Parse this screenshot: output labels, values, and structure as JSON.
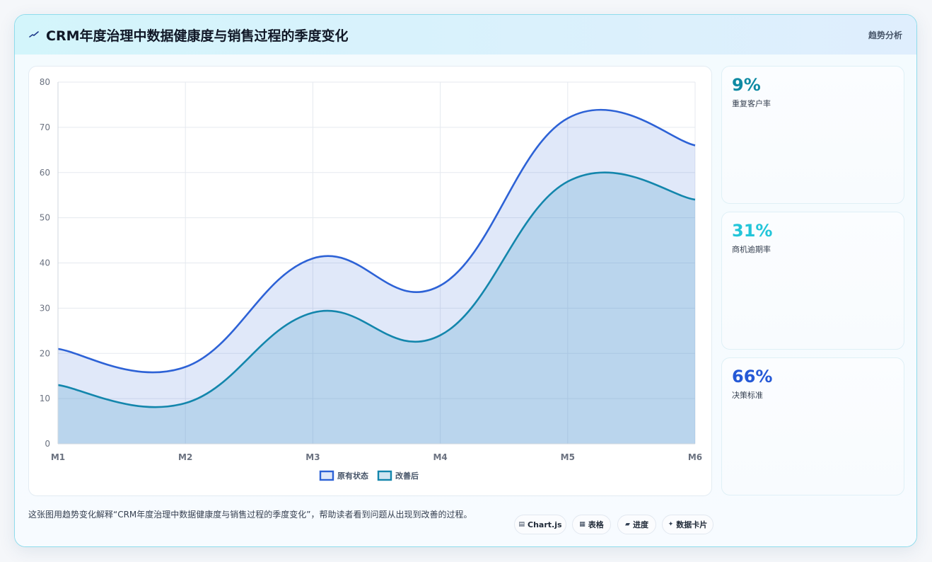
{
  "header": {
    "icon": "pulse-icon",
    "title": "CRM年度治理中数据健康度与销售过程的季度变化",
    "tag": "趋势分析"
  },
  "chart_data": {
    "type": "area",
    "categories": [
      "M1",
      "M2",
      "M3",
      "M4",
      "M5",
      "M6"
    ],
    "series": [
      {
        "name": "原有状态",
        "values": [
          21,
          17,
          41,
          35,
          72,
          66
        ],
        "color": "#2d62d6"
      },
      {
        "name": "改善后",
        "values": [
          13,
          9,
          29,
          24,
          58,
          54
        ],
        "color": "#1386ac"
      }
    ],
    "ylim": [
      0,
      80
    ],
    "yticks": [
      0,
      10,
      20,
      30,
      40,
      50,
      60,
      70,
      80
    ],
    "grid": true,
    "legend": "bottom"
  },
  "stats": [
    {
      "value": "9%",
      "label": "重复客户率",
      "color": "#0e8aa3"
    },
    {
      "value": "31%",
      "label": "商机逾期率",
      "color": "#22c5d9"
    },
    {
      "value": "66%",
      "label": "决策标准",
      "color": "#2559d6"
    }
  ],
  "footer": {
    "description": "这张图用趋势变化解释“CRM年度治理中数据健康度与销售过程的季度变化”，帮助读者看到问题从出现到改善的过程。",
    "chips": [
      {
        "icon": "chart-icon",
        "label": "Chart.js"
      },
      {
        "icon": "table-icon",
        "label": "表格"
      },
      {
        "icon": "progress-icon",
        "label": "进度"
      },
      {
        "icon": "sparkle-icon",
        "label": "数据卡片"
      }
    ]
  }
}
